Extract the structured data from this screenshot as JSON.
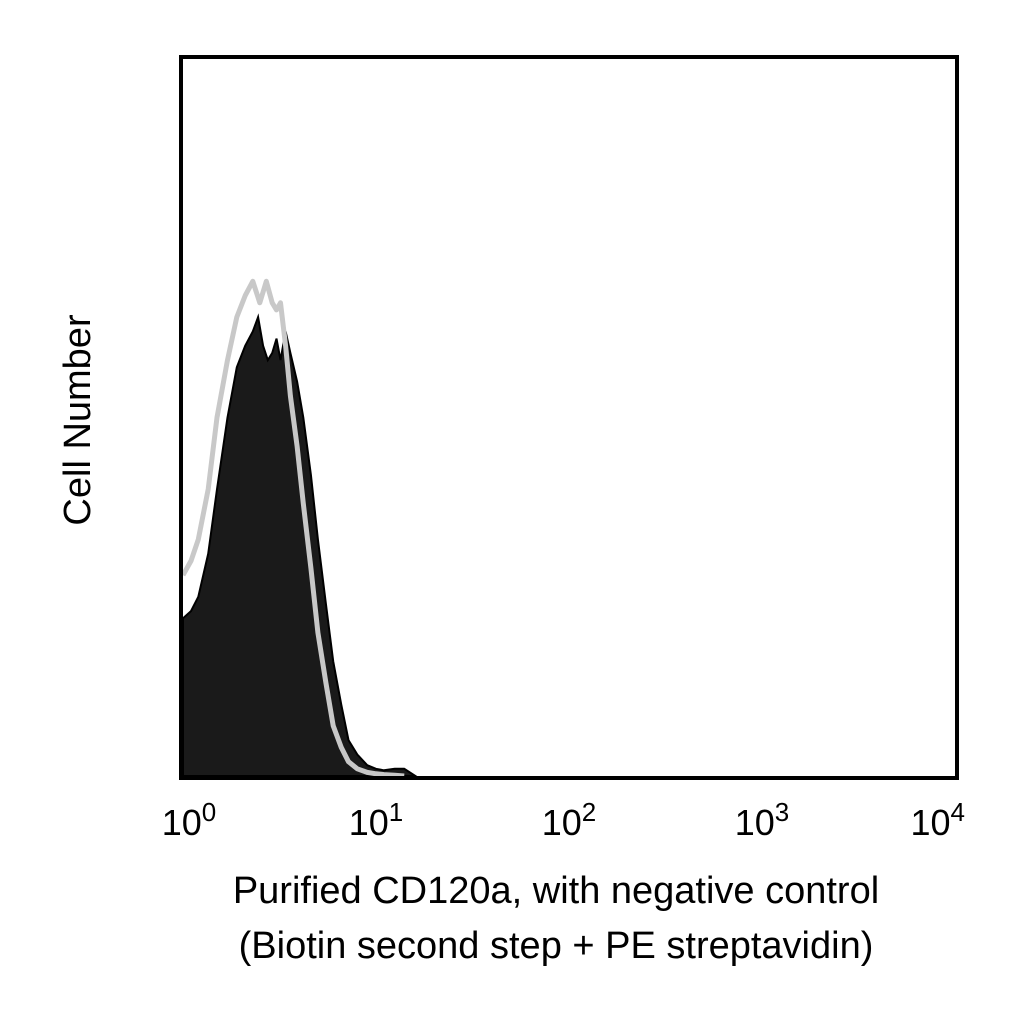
{
  "chart_data": {
    "type": "area",
    "title": "",
    "xlabel_line1": "Purified CD120a, with negative control",
    "xlabel_line2": "(Biotin second step + PE streptavidin)",
    "ylabel": "Cell Number",
    "xscale": "log",
    "xlim": [
      1,
      10000
    ],
    "ylim": [
      0,
      1
    ],
    "grid": false,
    "legend": "none",
    "x_ticks": [
      {
        "value": 1,
        "base": "10",
        "exp": "0"
      },
      {
        "value": 10,
        "base": "10",
        "exp": "1"
      },
      {
        "value": 100,
        "base": "10",
        "exp": "2"
      },
      {
        "value": 1000,
        "base": "10",
        "exp": "3"
      },
      {
        "value": 10000,
        "base": "10",
        "exp": "4"
      }
    ],
    "series": [
      {
        "style": "filled",
        "color": "#1a1a1a",
        "x": [
          1.0,
          1.1,
          1.2,
          1.35,
          1.5,
          1.7,
          1.9,
          2.1,
          2.3,
          2.45,
          2.6,
          2.75,
          2.9,
          3.05,
          3.2,
          3.4,
          3.6,
          3.9,
          4.2,
          4.6,
          5.0,
          5.5,
          6.0,
          6.6,
          7.2,
          8.0,
          9.0,
          10.0,
          11.0,
          12.5,
          14.0,
          16.0
        ],
        "y": [
          0.22,
          0.23,
          0.25,
          0.31,
          0.4,
          0.5,
          0.57,
          0.6,
          0.62,
          0.64,
          0.6,
          0.58,
          0.59,
          0.61,
          0.58,
          0.62,
          0.59,
          0.55,
          0.5,
          0.42,
          0.33,
          0.24,
          0.16,
          0.1,
          0.05,
          0.03,
          0.015,
          0.01,
          0.008,
          0.01,
          0.01,
          0.0
        ]
      },
      {
        "style": "outline",
        "color": "#c8c8c8",
        "x": [
          1.0,
          1.1,
          1.2,
          1.35,
          1.5,
          1.7,
          1.9,
          2.1,
          2.3,
          2.5,
          2.7,
          2.9,
          3.05,
          3.2,
          3.4,
          3.6,
          3.9,
          4.2,
          4.6,
          5.0,
          5.5,
          6.0,
          6.6,
          7.2,
          8.0,
          9.0,
          10.0,
          11.0,
          12.5,
          14.0
        ],
        "y": [
          0.28,
          0.3,
          0.33,
          0.4,
          0.5,
          0.58,
          0.64,
          0.67,
          0.69,
          0.66,
          0.69,
          0.66,
          0.65,
          0.66,
          0.6,
          0.53,
          0.46,
          0.38,
          0.29,
          0.2,
          0.13,
          0.07,
          0.04,
          0.02,
          0.01,
          0.005,
          0.003,
          0.002,
          0.001,
          0.0
        ]
      }
    ]
  }
}
